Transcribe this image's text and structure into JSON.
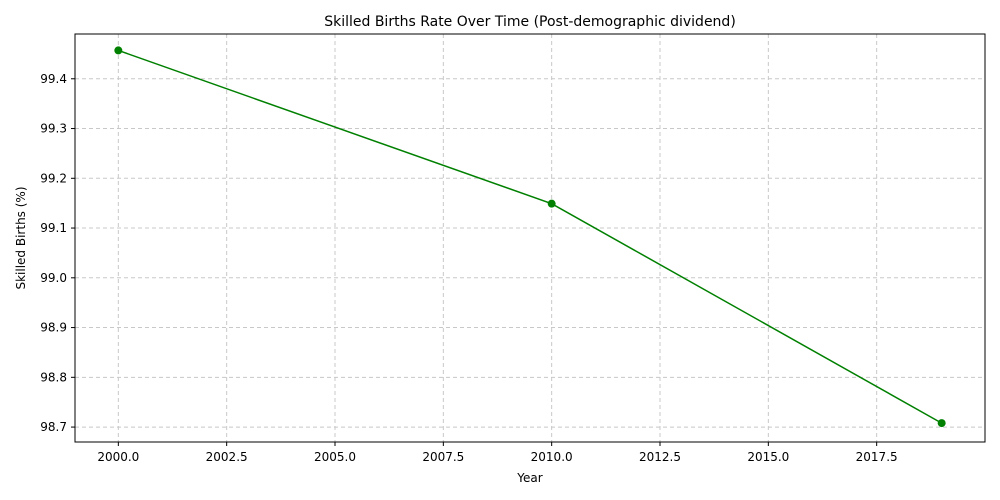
{
  "chart_data": {
    "type": "line",
    "title": "Skilled Births Rate Over Time (Post-demographic dividend)",
    "xlabel": "Year",
    "ylabel": "Skilled Births (%)",
    "xlim": [
      1999.0,
      2020.0
    ],
    "ylim": [
      98.67,
      99.49
    ],
    "x_ticks": [
      "2000.0",
      "2002.5",
      "2005.0",
      "2007.5",
      "2010.0",
      "2012.5",
      "2015.0",
      "2017.5"
    ],
    "y_ticks": [
      "98.7",
      "98.8",
      "98.9",
      "99.0",
      "99.1",
      "99.2",
      "99.3",
      "99.4"
    ],
    "grid": true,
    "line_color": "#008000",
    "grid_color": "#c8c8c8",
    "series": [
      {
        "x": [
          2000,
          2010,
          2019
        ],
        "y": [
          99.457,
          99.149,
          98.708
        ]
      }
    ]
  }
}
